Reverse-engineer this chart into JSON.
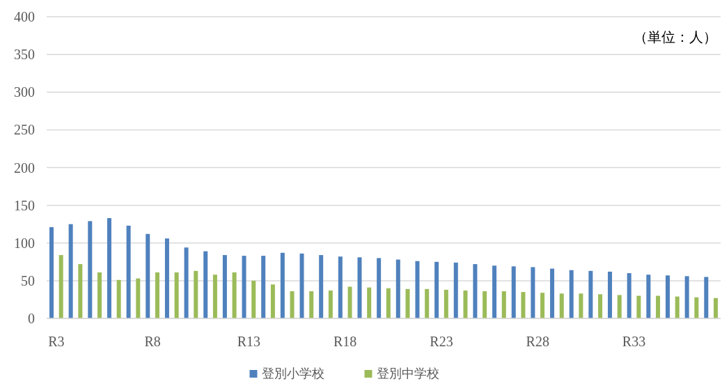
{
  "chart_data": {
    "type": "bar",
    "categories": [
      "R3",
      null,
      null,
      null,
      null,
      "R8",
      null,
      null,
      null,
      null,
      "R13",
      null,
      null,
      null,
      null,
      "R18",
      null,
      null,
      null,
      null,
      "R23",
      null,
      null,
      null,
      null,
      "R28",
      null,
      null,
      null,
      null,
      "R33",
      null,
      null,
      null,
      null
    ],
    "series": [
      {
        "name": "登別小学校",
        "color": "#4f81bd",
        "values": [
          121,
          125,
          129,
          133,
          123,
          112,
          106,
          94,
          89,
          84,
          83,
          83,
          87,
          86,
          84,
          82,
          81,
          80,
          78,
          76,
          75,
          74,
          72,
          70,
          69,
          68,
          66,
          64,
          63,
          62,
          60,
          58,
          57,
          56,
          55
        ]
      },
      {
        "name": "登別中学校",
        "color": "#9bbb59",
        "values": [
          84,
          72,
          61,
          51,
          53,
          61,
          61,
          63,
          58,
          61,
          50,
          45,
          36,
          36,
          37,
          42,
          41,
          40,
          39,
          39,
          38,
          37,
          36,
          36,
          35,
          34,
          33,
          33,
          32,
          31,
          30,
          30,
          29,
          28,
          27
        ]
      }
    ],
    "ylim": [
      0,
      400
    ],
    "yticks": [
      0,
      50,
      100,
      150,
      200,
      250,
      300,
      350,
      400
    ],
    "grid": "y",
    "legend": "bottom",
    "annotations": [
      "（単位：人）"
    ]
  }
}
